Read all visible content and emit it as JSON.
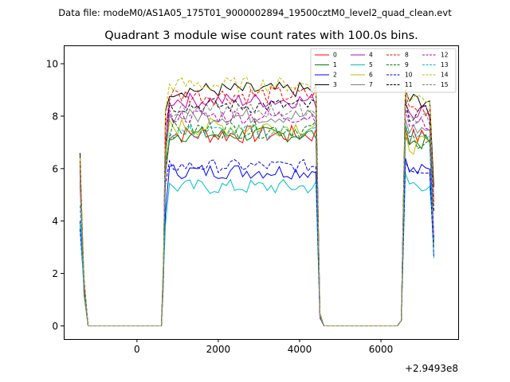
{
  "chart_data": {
    "type": "line",
    "suptitle": "Data file: modeM0/AS1A05_175T01_9000002894_19500cztM0_level2_quad_clean.evt",
    "title": "Quadrant 3 module wise count rates with 100.0s bins.",
    "xlabel": "",
    "ylabel": "",
    "x_offset_label": "+2.9493e8",
    "xlim": [
      -1800,
      7900
    ],
    "ylim": [
      -0.5,
      10.7
    ],
    "xticks": [
      0,
      2000,
      4000,
      6000
    ],
    "yticks": [
      0,
      2,
      4,
      6,
      8,
      10
    ],
    "xtick_labels": [
      "0",
      "2000",
      "4000",
      "6000"
    ],
    "ytick_labels": [
      "0",
      "2",
      "4",
      "6",
      "8",
      "10"
    ],
    "legend_location": "top-right",
    "gaps_zero_level": 0,
    "segments_x": [
      [
        -1400,
        -1300,
        -1200
      ],
      [
        600,
        700,
        4500,
        4600
      ],
      [
        6500,
        6600,
        7300
      ]
    ],
    "series": [
      {
        "name": "0",
        "color": "#ff0000",
        "dash": "solid",
        "start": 6.1,
        "level": 7.3,
        "noise": 0.35,
        "post_level": 7.2
      },
      {
        "name": "1",
        "color": "#008000",
        "dash": "solid",
        "start": 6.3,
        "level": 7.3,
        "noise": 0.3,
        "post_level": 7.0
      },
      {
        "name": "2",
        "color": "#0000ff",
        "dash": "solid",
        "start": 4.0,
        "level": 5.9,
        "noise": 0.3,
        "post_level": 5.9
      },
      {
        "name": "3",
        "color": "#000000",
        "dash": "solid",
        "start": 6.6,
        "level": 9.0,
        "noise": 0.3,
        "post_level": 8.6
      },
      {
        "name": "4",
        "color": "#bf00bf",
        "dash": "solid",
        "start": 5.4,
        "level": 8.6,
        "noise": 0.3,
        "post_level": 8.2
      },
      {
        "name": "5",
        "color": "#00bfbf",
        "dash": "solid",
        "start": 3.9,
        "level": 5.3,
        "noise": 0.3,
        "post_level": 5.4
      },
      {
        "name": "6",
        "color": "#bfbf00",
        "dash": "solid",
        "start": 6.2,
        "level": 7.6,
        "noise": 0.35,
        "post_level": 6.9
      },
      {
        "name": "7",
        "color": "#808080",
        "dash": "solid",
        "start": 5.5,
        "level": 8.0,
        "noise": 0.3,
        "post_level": 7.5
      },
      {
        "name": "8",
        "color": "#ff0000",
        "dash": "dashed",
        "start": 6.3,
        "level": 8.8,
        "noise": 0.35,
        "post_level": 8.3
      },
      {
        "name": "9",
        "color": "#008000",
        "dash": "dashed",
        "start": 5.8,
        "level": 7.5,
        "noise": 0.35,
        "post_level": 7.1
      },
      {
        "name": "10",
        "color": "#0000ff",
        "dash": "dashed",
        "start": 3.7,
        "level": 6.1,
        "noise": 0.25,
        "post_level": 6.0
      },
      {
        "name": "11",
        "color": "#000000",
        "dash": "dashed",
        "start": 6.2,
        "level": 8.4,
        "noise": 0.3,
        "post_level": 8.1
      },
      {
        "name": "12",
        "color": "#bf00bf",
        "dash": "dashed",
        "start": 5.9,
        "level": 8.0,
        "noise": 0.3,
        "post_level": 7.7
      },
      {
        "name": "13",
        "color": "#00bfbf",
        "dash": "dashed",
        "start": 4.6,
        "level": 7.4,
        "noise": 0.3,
        "post_level": 7.2
      },
      {
        "name": "14",
        "color": "#bfbf00",
        "dash": "dashed",
        "start": 6.4,
        "level": 9.2,
        "noise": 0.3,
        "post_level": 8.7
      },
      {
        "name": "15",
        "color": "#808080",
        "dash": "dashed",
        "start": 5.8,
        "level": 8.2,
        "noise": 0.3,
        "post_level": 7.9
      }
    ]
  }
}
